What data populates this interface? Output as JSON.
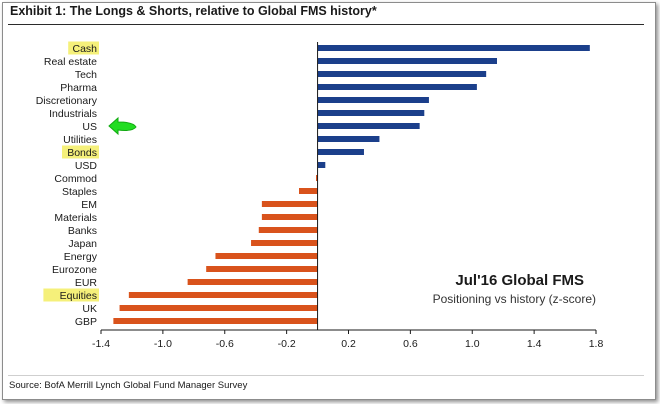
{
  "header": {
    "title": "Exhibit 1: The Longs & Shorts, relative to Global FMS history*"
  },
  "footer": {
    "source": "Source: BofA Merrill Lynch Global Fund Manager Survey"
  },
  "colors": {
    "positive": "#1b3f8b",
    "negative": "#d9531c",
    "highlight": "#f5f07a",
    "arrow": "#22dd22"
  },
  "annotations": {
    "highlighted_categories": [
      "Cash",
      "Bonds",
      "Equities"
    ],
    "arrow_points_to": "US",
    "arrow_icon": "green-arrow-left-icon"
  },
  "chart_data": {
    "type": "bar",
    "orientation": "horizontal",
    "title": "Jul'16 Global FMS",
    "subtitle": "Positioning vs history (z-score)",
    "categories": [
      "Cash",
      "Real estate",
      "Tech",
      "Pharma",
      "Discretionary",
      "Industrials",
      "US",
      "Utilities",
      "Bonds",
      "USD",
      "Commod",
      "Staples",
      "EM",
      "Materials",
      "Banks",
      "Japan",
      "Energy",
      "Eurozone",
      "EUR",
      "Equities",
      "UK",
      "GBP"
    ],
    "values": [
      1.76,
      1.16,
      1.09,
      1.03,
      0.72,
      0.69,
      0.66,
      0.4,
      0.3,
      0.05,
      -0.01,
      -0.12,
      -0.36,
      -0.36,
      -0.38,
      -0.43,
      -0.66,
      -0.72,
      -0.84,
      -1.22,
      -1.28,
      -1.32
    ],
    "xlim": [
      -1.4,
      1.8
    ],
    "xticks": [
      "-1.4",
      "-1.0",
      "-0.6",
      "-0.2",
      "0.2",
      "0.6",
      "1.0",
      "1.4",
      "1.8"
    ],
    "grid": false,
    "legend": "none"
  }
}
